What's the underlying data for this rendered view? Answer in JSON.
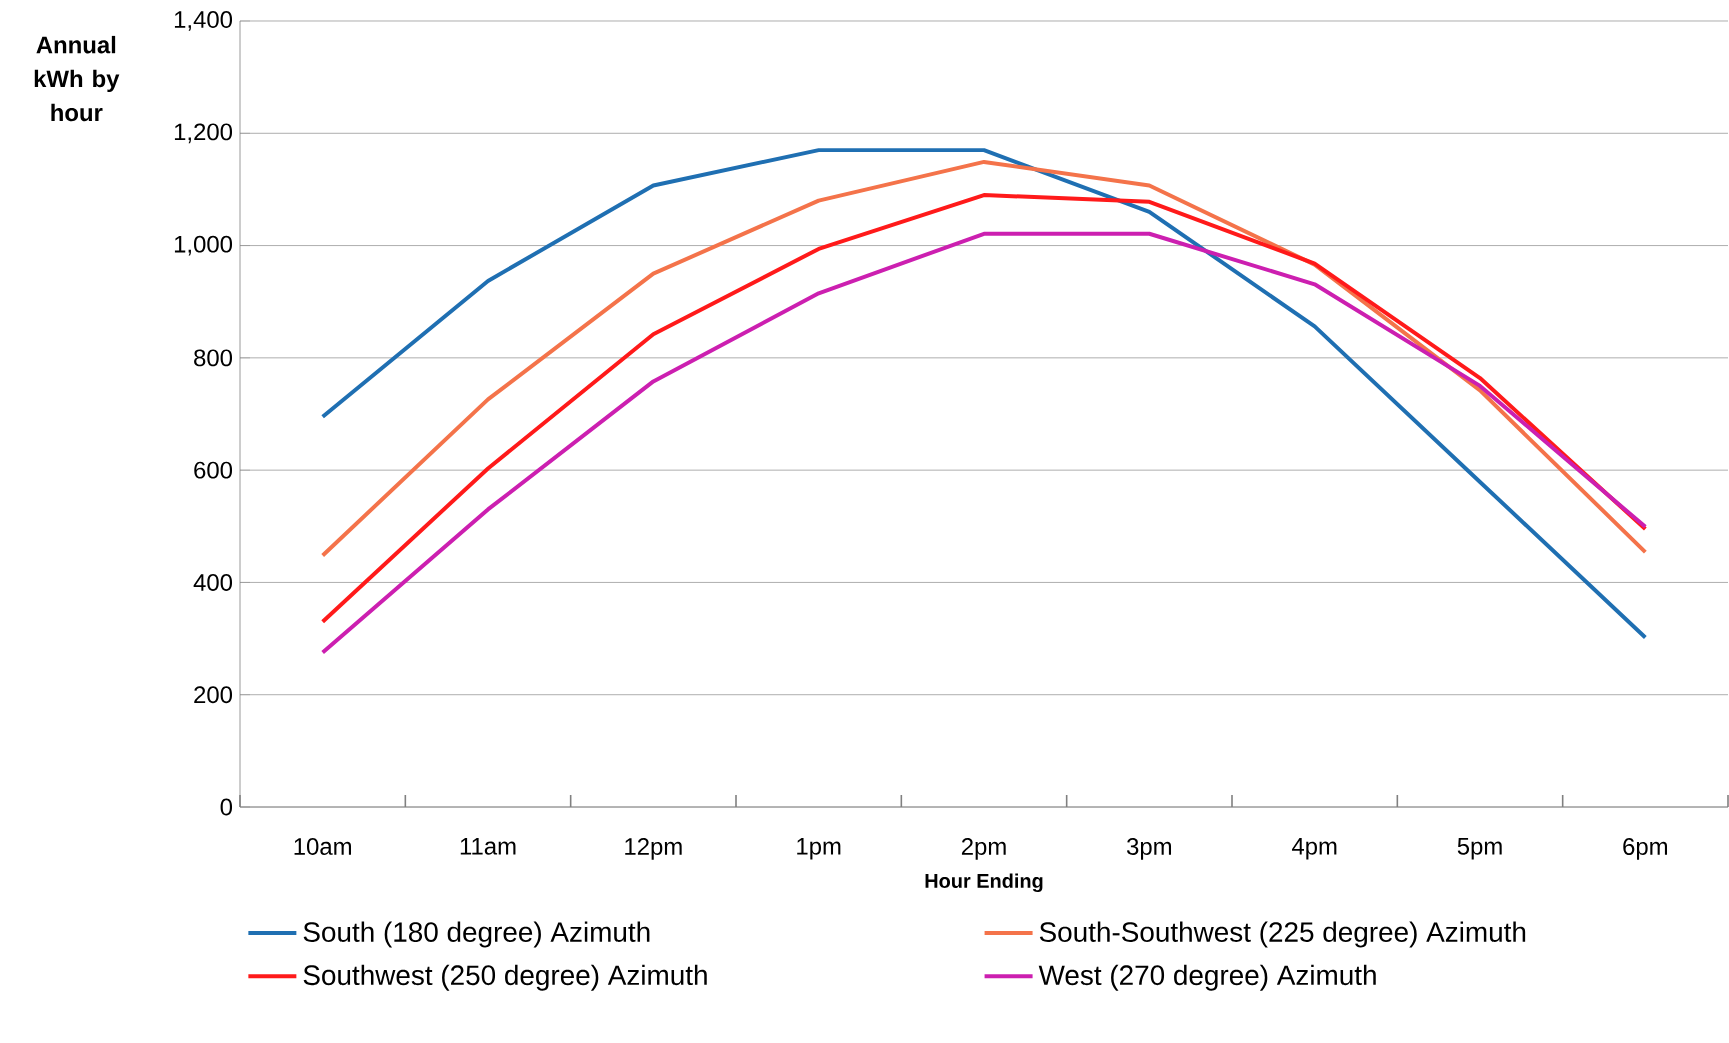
{
  "chart_data": {
    "type": "line",
    "xlabel": "Hour Ending",
    "ylabel": "Annual kWh by hour",
    "categories": [
      "10am",
      "11am",
      "12pm",
      "1pm",
      "2pm",
      "3pm",
      "4pm",
      "5pm",
      "6pm"
    ],
    "series": [
      {
        "name": "South (180 degree) Azimuth",
        "color": "#1f6fb2",
        "values": [
          695,
          937,
          1107,
          1170,
          1170,
          1060,
          856,
          579,
          302
        ]
      },
      {
        "name": "South-Southwest (225 degree) Azimuth",
        "color": "#f4734a",
        "values": [
          448,
          726,
          950,
          1080,
          1149,
          1107,
          966,
          742,
          454
        ]
      },
      {
        "name": "Southwest (250 degree) Azimuth",
        "color": "#ff1a1a",
        "values": [
          330,
          603,
          842,
          994,
          1090,
          1078,
          968,
          764,
          495
        ]
      },
      {
        "name": "West (270 degree) Azimuth",
        "color": "#cc1fb0",
        "values": [
          275,
          530,
          758,
          915,
          1021,
          1021,
          931,
          750,
          499
        ]
      }
    ],
    "ylim": [
      0,
      1400
    ],
    "yticks": [
      0,
      200,
      400,
      600,
      800,
      {
        "value": 1000,
        "label": "1,000"
      },
      {
        "value": 1200,
        "label": "1,200"
      },
      {
        "value": 1400,
        "label": "1,400"
      }
    ],
    "grid": "y",
    "legend": "bottom",
    "marker": "none",
    "line_style": "solid"
  }
}
